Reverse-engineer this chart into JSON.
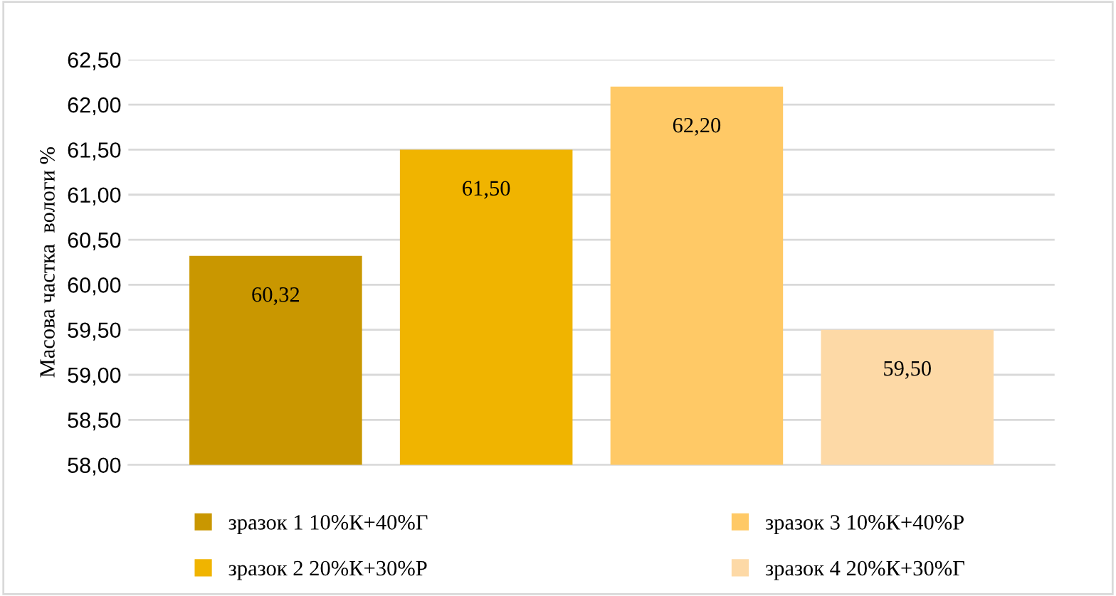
{
  "chart_data": {
    "type": "bar",
    "ylabel": "Масова частка  вологи %",
    "categories": [
      null,
      null,
      null,
      null
    ],
    "series": [
      {
        "name": "зразок 1 10%К+40%Г",
        "color": "#c99700",
        "values": [
          60.32,
          null,
          null,
          null
        ]
      },
      {
        "name": "зразок 2 20%К+30%Р",
        "color": "#f0b400",
        "values": [
          null,
          61.5,
          null,
          null
        ]
      },
      {
        "name": "зразок 3 10%К+40%Р",
        "color": "#ffc966",
        "values": [
          null,
          null,
          62.2,
          null
        ]
      },
      {
        "name": "зразок 4 20%К+30%Г",
        "color": "#fdd9a6",
        "values": [
          null,
          null,
          null,
          59.5
        ]
      }
    ],
    "ylim": [
      58,
      62.5
    ],
    "yticks": [
      {
        "value": 58,
        "label": "58,00"
      },
      {
        "value": 58.5,
        "label": "58,50"
      },
      {
        "value": 59,
        "label": "59,00"
      },
      {
        "value": 59.5,
        "label": "59,50"
      },
      {
        "value": 60,
        "label": "60,00"
      },
      {
        "value": 60.5,
        "label": "60,50"
      },
      {
        "value": 61,
        "label": "61,00"
      },
      {
        "value": 61.5,
        "label": "61,50"
      },
      {
        "value": 62,
        "label": "62,00"
      },
      {
        "value": 62.5,
        "label": "62,50"
      }
    ],
    "value_labels": [
      "60,32",
      "61,50",
      "62,20",
      "59,50"
    ],
    "grid": "y",
    "legend": "bottom"
  }
}
